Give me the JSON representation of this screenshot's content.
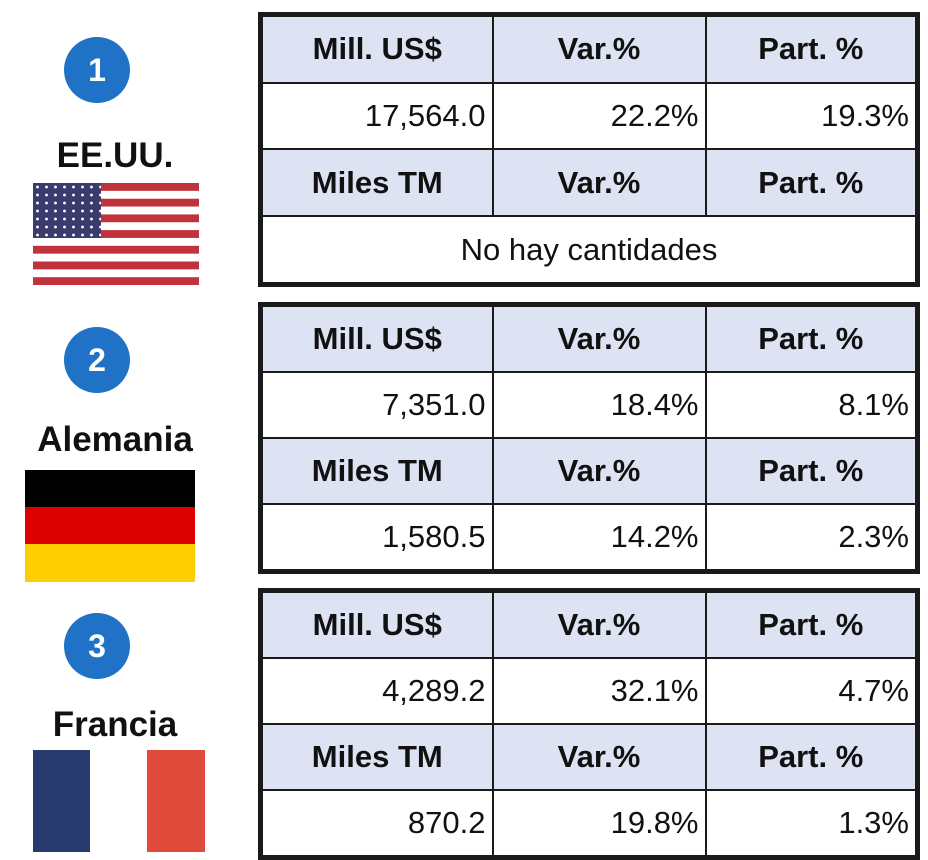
{
  "countries": [
    {
      "rank": "1",
      "name": "EE.UU.",
      "table": {
        "rows": [
          [
            "Mill. US$",
            "Var.%",
            "Part. %"
          ],
          [
            "17,564.0",
            "22.2%",
            "19.3%"
          ],
          [
            "Miles TM",
            "Var.%",
            "Part. %"
          ],
          [
            "No hay cantidades"
          ]
        ]
      }
    },
    {
      "rank": "2",
      "name": "Alemania",
      "table": {
        "rows": [
          [
            "Mill. US$",
            "Var.%",
            "Part. %"
          ],
          [
            "7,351.0",
            "18.4%",
            "8.1%"
          ],
          [
            "Miles TM",
            "Var.%",
            "Part. %"
          ],
          [
            "1,580.5",
            "14.2%",
            "2.3%"
          ]
        ]
      }
    },
    {
      "rank": "3",
      "name": "Francia",
      "table": {
        "rows": [
          [
            "Mill. US$",
            "Var.%",
            "Part. %"
          ],
          [
            "4,289.2",
            "32.1%",
            "4.7%"
          ],
          [
            "Miles TM",
            "Var.%",
            "Part. %"
          ],
          [
            "870.2",
            "19.8%",
            "1.3%"
          ]
        ]
      }
    }
  ]
}
